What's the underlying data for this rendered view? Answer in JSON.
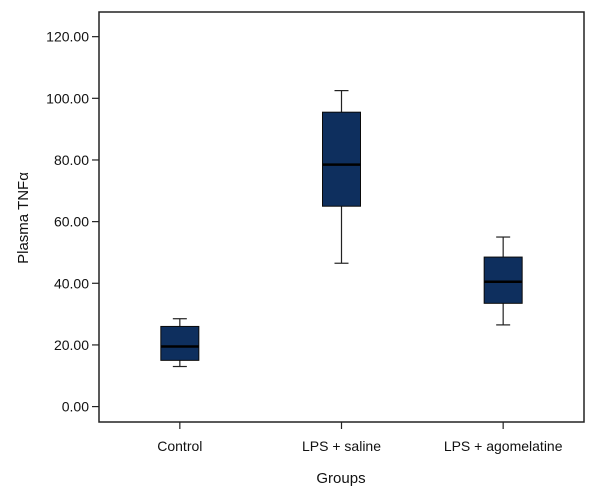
{
  "chart_data": {
    "type": "boxplot",
    "xlabel": "Groups",
    "ylabel": "Plasma TNFα",
    "ylim": [
      -5,
      128
    ],
    "yticks": [
      0,
      20,
      40,
      60,
      80,
      100,
      120
    ],
    "ytick_labels": [
      "0.00",
      "20.00",
      "40.00",
      "60.00",
      "80.00",
      "100.00",
      "120.00"
    ],
    "categories": [
      "Control",
      "LPS + saline",
      "LPS + agomelatine"
    ],
    "boxes": [
      {
        "name": "Control",
        "min": 13.0,
        "q1": 15.0,
        "median": 19.5,
        "q3": 26.0,
        "max": 28.5
      },
      {
        "name": "LPS + saline",
        "min": 46.5,
        "q1": 65.0,
        "median": 78.5,
        "q3": 95.5,
        "max": 102.5
      },
      {
        "name": "LPS + agomelatine",
        "min": 26.5,
        "q1": 33.5,
        "median": 40.5,
        "q3": 48.5,
        "max": 55.0
      }
    ],
    "box_color": "#0e2f5e",
    "median_color": "#000000",
    "grid": false
  }
}
